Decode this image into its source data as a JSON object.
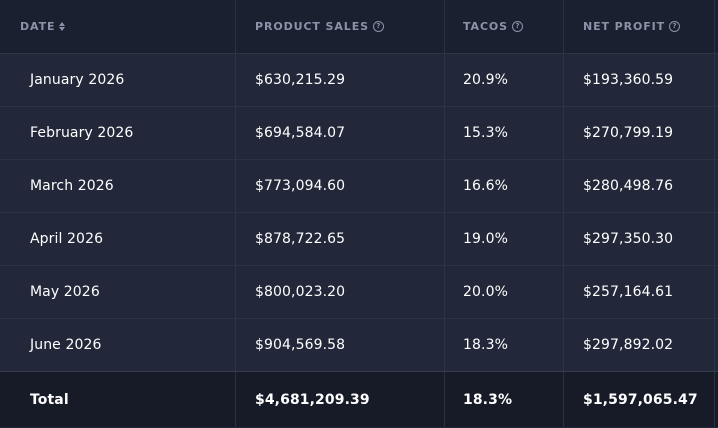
{
  "table": {
    "headers": [
      {
        "label": "DATE",
        "icon": "sort-icon"
      },
      {
        "label": "PRODUCT SALES",
        "icon": "help-icon"
      },
      {
        "label": "TACOS",
        "icon": "help-icon"
      },
      {
        "label": "NET PROFIT",
        "icon": "help-icon"
      }
    ],
    "rows": [
      {
        "date": "January 2026",
        "sales": "$630,215.29",
        "tacos": "20.9%",
        "profit": "$193,360.59"
      },
      {
        "date": "February 2026",
        "sales": "$694,584.07",
        "tacos": "15.3%",
        "profit": "$270,799.19"
      },
      {
        "date": "March 2026",
        "sales": "$773,094.60",
        "tacos": "16.6%",
        "profit": "$280,498.76"
      },
      {
        "date": "April 2026",
        "sales": "$878,722.65",
        "tacos": "19.0%",
        "profit": "$297,350.30"
      },
      {
        "date": "May 2026",
        "sales": "$800,023.20",
        "tacos": "20.0%",
        "profit": "$257,164.61"
      },
      {
        "date": "June 2026",
        "sales": "$904,569.58",
        "tacos": "18.3%",
        "profit": "$297,892.02"
      }
    ],
    "total": {
      "label": "Total",
      "sales": "$4,681,209.39",
      "tacos": "18.3%",
      "profit": "$1,597,065.47"
    }
  },
  "colors": {
    "background": "#222839",
    "header_background": "#1b2030",
    "total_background": "#171b27",
    "text": "#ffffff",
    "header_text": "#8a93a8",
    "border": "#2c3345"
  }
}
